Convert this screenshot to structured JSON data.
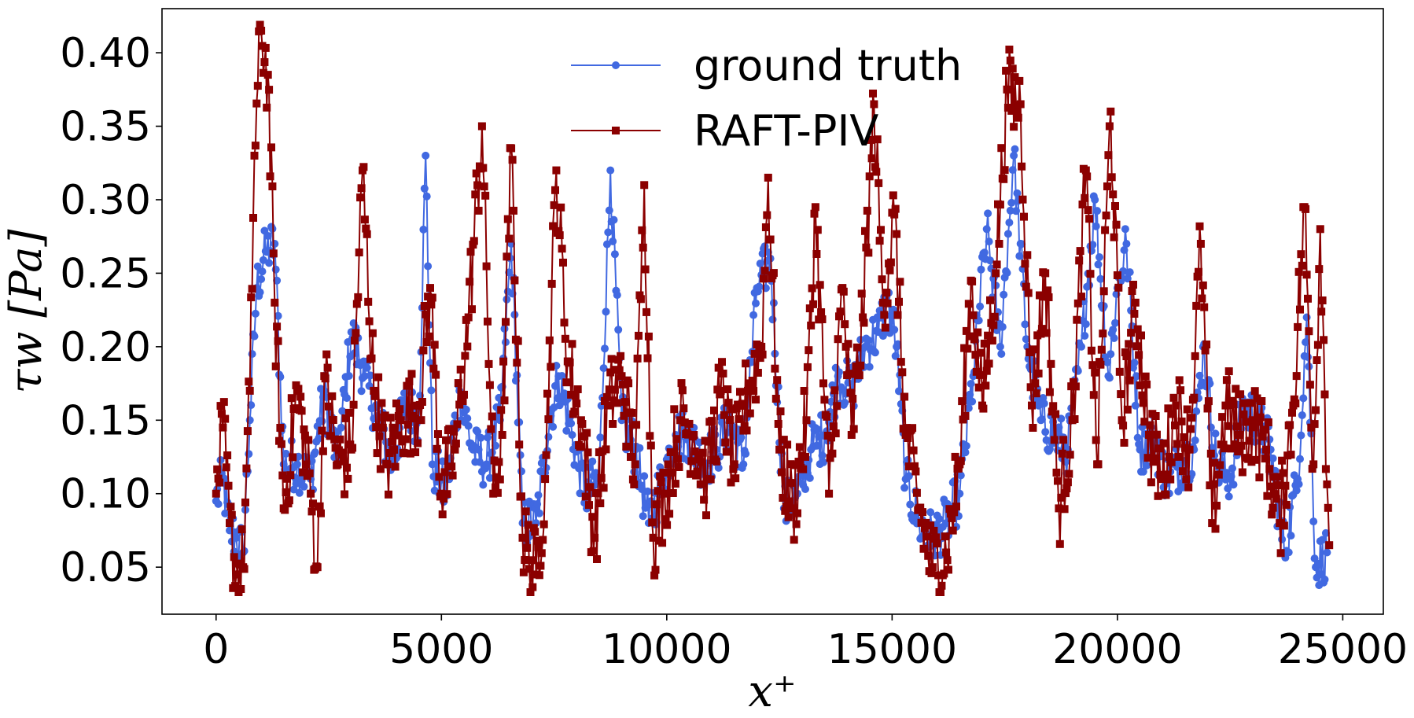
{
  "chart_data": {
    "type": "line",
    "xlabel": "x⁺",
    "ylabel": "τw [Pa]",
    "xlim": [
      -1200,
      25900
    ],
    "ylim": [
      0.018,
      0.43
    ],
    "xticks": [
      0,
      5000,
      10000,
      15000,
      20000,
      25000
    ],
    "yticks": [
      0.05,
      0.1,
      0.15,
      0.2,
      0.25,
      0.3,
      0.35,
      0.4
    ],
    "ytick_labels": [
      "0.05",
      "0.10",
      "0.15",
      "0.20",
      "0.25",
      "0.30",
      "0.35",
      "0.40"
    ],
    "grid": false,
    "legend": "upper-center",
    "series": [
      {
        "name": "ground truth",
        "color": "#4169e1",
        "marker": "circle",
        "anchors": [
          [
            0,
            0.095
          ],
          [
            150,
            0.11
          ],
          [
            300,
            0.075
          ],
          [
            450,
            0.07
          ],
          [
            600,
            0.06
          ],
          [
            750,
            0.15
          ],
          [
            900,
            0.24
          ],
          [
            1100,
            0.265
          ],
          [
            1300,
            0.27
          ],
          [
            1500,
            0.12
          ],
          [
            1800,
            0.12
          ],
          [
            2100,
            0.11
          ],
          [
            2400,
            0.17
          ],
          [
            2700,
            0.12
          ],
          [
            3000,
            0.21
          ],
          [
            3300,
            0.18
          ],
          [
            3600,
            0.15
          ],
          [
            3900,
            0.12
          ],
          [
            4200,
            0.16
          ],
          [
            4500,
            0.15
          ],
          [
            4650,
            0.33
          ],
          [
            4800,
            0.12
          ],
          [
            5100,
            0.1
          ],
          [
            5400,
            0.17
          ],
          [
            5700,
            0.13
          ],
          [
            6000,
            0.12
          ],
          [
            6300,
            0.15
          ],
          [
            6550,
            0.27
          ],
          [
            6800,
            0.08
          ],
          [
            7100,
            0.08
          ],
          [
            7400,
            0.15
          ],
          [
            7600,
            0.18
          ],
          [
            7900,
            0.14
          ],
          [
            8200,
            0.1
          ],
          [
            8500,
            0.11
          ],
          [
            8750,
            0.32
          ],
          [
            9000,
            0.15
          ],
          [
            9300,
            0.13
          ],
          [
            9600,
            0.08
          ],
          [
            9900,
            0.11
          ],
          [
            10200,
            0.14
          ],
          [
            10500,
            0.14
          ],
          [
            10800,
            0.12
          ],
          [
            11100,
            0.13
          ],
          [
            11400,
            0.15
          ],
          [
            11700,
            0.12
          ],
          [
            12000,
            0.24
          ],
          [
            12300,
            0.26
          ],
          [
            12600,
            0.09
          ],
          [
            12900,
            0.1
          ],
          [
            13200,
            0.13
          ],
          [
            13500,
            0.14
          ],
          [
            13800,
            0.18
          ],
          [
            14100,
            0.17
          ],
          [
            14400,
            0.2
          ],
          [
            14700,
            0.21
          ],
          [
            14900,
            0.23
          ],
          [
            15100,
            0.2
          ],
          [
            15300,
            0.11
          ],
          [
            15600,
            0.08
          ],
          [
            15900,
            0.07
          ],
          [
            16200,
            0.08
          ],
          [
            16500,
            0.1
          ],
          [
            16800,
            0.18
          ],
          [
            17100,
            0.28
          ],
          [
            17400,
            0.2
          ],
          [
            17700,
            0.33
          ],
          [
            18000,
            0.2
          ],
          [
            18300,
            0.15
          ],
          [
            18600,
            0.14
          ],
          [
            18900,
            0.13
          ],
          [
            19200,
            0.2
          ],
          [
            19500,
            0.3
          ],
          [
            19800,
            0.18
          ],
          [
            20000,
            0.24
          ],
          [
            20200,
            0.27
          ],
          [
            20500,
            0.13
          ],
          [
            20800,
            0.14
          ],
          [
            21100,
            0.11
          ],
          [
            21400,
            0.12
          ],
          [
            21700,
            0.13
          ],
          [
            21900,
            0.2
          ],
          [
            22200,
            0.12
          ],
          [
            22500,
            0.11
          ],
          [
            22800,
            0.16
          ],
          [
            23100,
            0.15
          ],
          [
            23400,
            0.13
          ],
          [
            23700,
            0.06
          ],
          [
            24000,
            0.11
          ],
          [
            24200,
            0.22
          ],
          [
            24400,
            0.05
          ],
          [
            24650,
            0.06
          ]
        ]
      },
      {
        "name": "RAFT-PIV",
        "color": "#8b0000",
        "marker": "square",
        "anchors": [
          [
            0,
            0.1
          ],
          [
            150,
            0.145
          ],
          [
            300,
            0.08
          ],
          [
            450,
            0.045
          ],
          [
            600,
            0.05
          ],
          [
            750,
            0.17
          ],
          [
            850,
            0.33
          ],
          [
            1000,
            0.415
          ],
          [
            1150,
            0.385
          ],
          [
            1300,
            0.23
          ],
          [
            1500,
            0.09
          ],
          [
            1800,
            0.17
          ],
          [
            2100,
            0.1
          ],
          [
            2250,
            0.05
          ],
          [
            2400,
            0.18
          ],
          [
            2700,
            0.12
          ],
          [
            3000,
            0.13
          ],
          [
            3250,
            0.32
          ],
          [
            3500,
            0.17
          ],
          [
            3800,
            0.12
          ],
          [
            4100,
            0.15
          ],
          [
            4500,
            0.16
          ],
          [
            4750,
            0.24
          ],
          [
            5000,
            0.1
          ],
          [
            5300,
            0.13
          ],
          [
            5600,
            0.22
          ],
          [
            5900,
            0.35
          ],
          [
            6150,
            0.1
          ],
          [
            6350,
            0.14
          ],
          [
            6550,
            0.335
          ],
          [
            6800,
            0.07
          ],
          [
            7100,
            0.045
          ],
          [
            7300,
            0.11
          ],
          [
            7550,
            0.32
          ],
          [
            7800,
            0.19
          ],
          [
            8100,
            0.15
          ],
          [
            8400,
            0.07
          ],
          [
            8700,
            0.16
          ],
          [
            9000,
            0.18
          ],
          [
            9300,
            0.12
          ],
          [
            9500,
            0.31
          ],
          [
            9700,
            0.07
          ],
          [
            9950,
            0.1
          ],
          [
            10300,
            0.15
          ],
          [
            10600,
            0.14
          ],
          [
            10900,
            0.11
          ],
          [
            11200,
            0.17
          ],
          [
            11500,
            0.12
          ],
          [
            11800,
            0.17
          ],
          [
            12100,
            0.2
          ],
          [
            12250,
            0.315
          ],
          [
            12500,
            0.13
          ],
          [
            12800,
            0.09
          ],
          [
            13100,
            0.15
          ],
          [
            13300,
            0.295
          ],
          [
            13600,
            0.1
          ],
          [
            13900,
            0.24
          ],
          [
            14100,
            0.14
          ],
          [
            14350,
            0.22
          ],
          [
            14600,
            0.365
          ],
          [
            14800,
            0.23
          ],
          [
            15050,
            0.29
          ],
          [
            15300,
            0.14
          ],
          [
            15600,
            0.09
          ],
          [
            15900,
            0.05
          ],
          [
            16200,
            0.06
          ],
          [
            16500,
            0.12
          ],
          [
            16750,
            0.245
          ],
          [
            17000,
            0.16
          ],
          [
            17300,
            0.25
          ],
          [
            17550,
            0.375
          ],
          [
            17850,
            0.365
          ],
          [
            18100,
            0.16
          ],
          [
            18400,
            0.25
          ],
          [
            18700,
            0.09
          ],
          [
            19000,
            0.15
          ],
          [
            19300,
            0.32
          ],
          [
            19550,
            0.12
          ],
          [
            19850,
            0.36
          ],
          [
            20100,
            0.15
          ],
          [
            20400,
            0.23
          ],
          [
            20700,
            0.14
          ],
          [
            21000,
            0.11
          ],
          [
            21300,
            0.16
          ],
          [
            21600,
            0.13
          ],
          [
            21850,
            0.27
          ],
          [
            22100,
            0.08
          ],
          [
            22400,
            0.16
          ],
          [
            22700,
            0.14
          ],
          [
            23000,
            0.15
          ],
          [
            23300,
            0.13
          ],
          [
            23600,
            0.08
          ],
          [
            23900,
            0.16
          ],
          [
            24150,
            0.295
          ],
          [
            24350,
            0.12
          ],
          [
            24500,
            0.28
          ],
          [
            24700,
            0.065
          ]
        ]
      }
    ]
  }
}
